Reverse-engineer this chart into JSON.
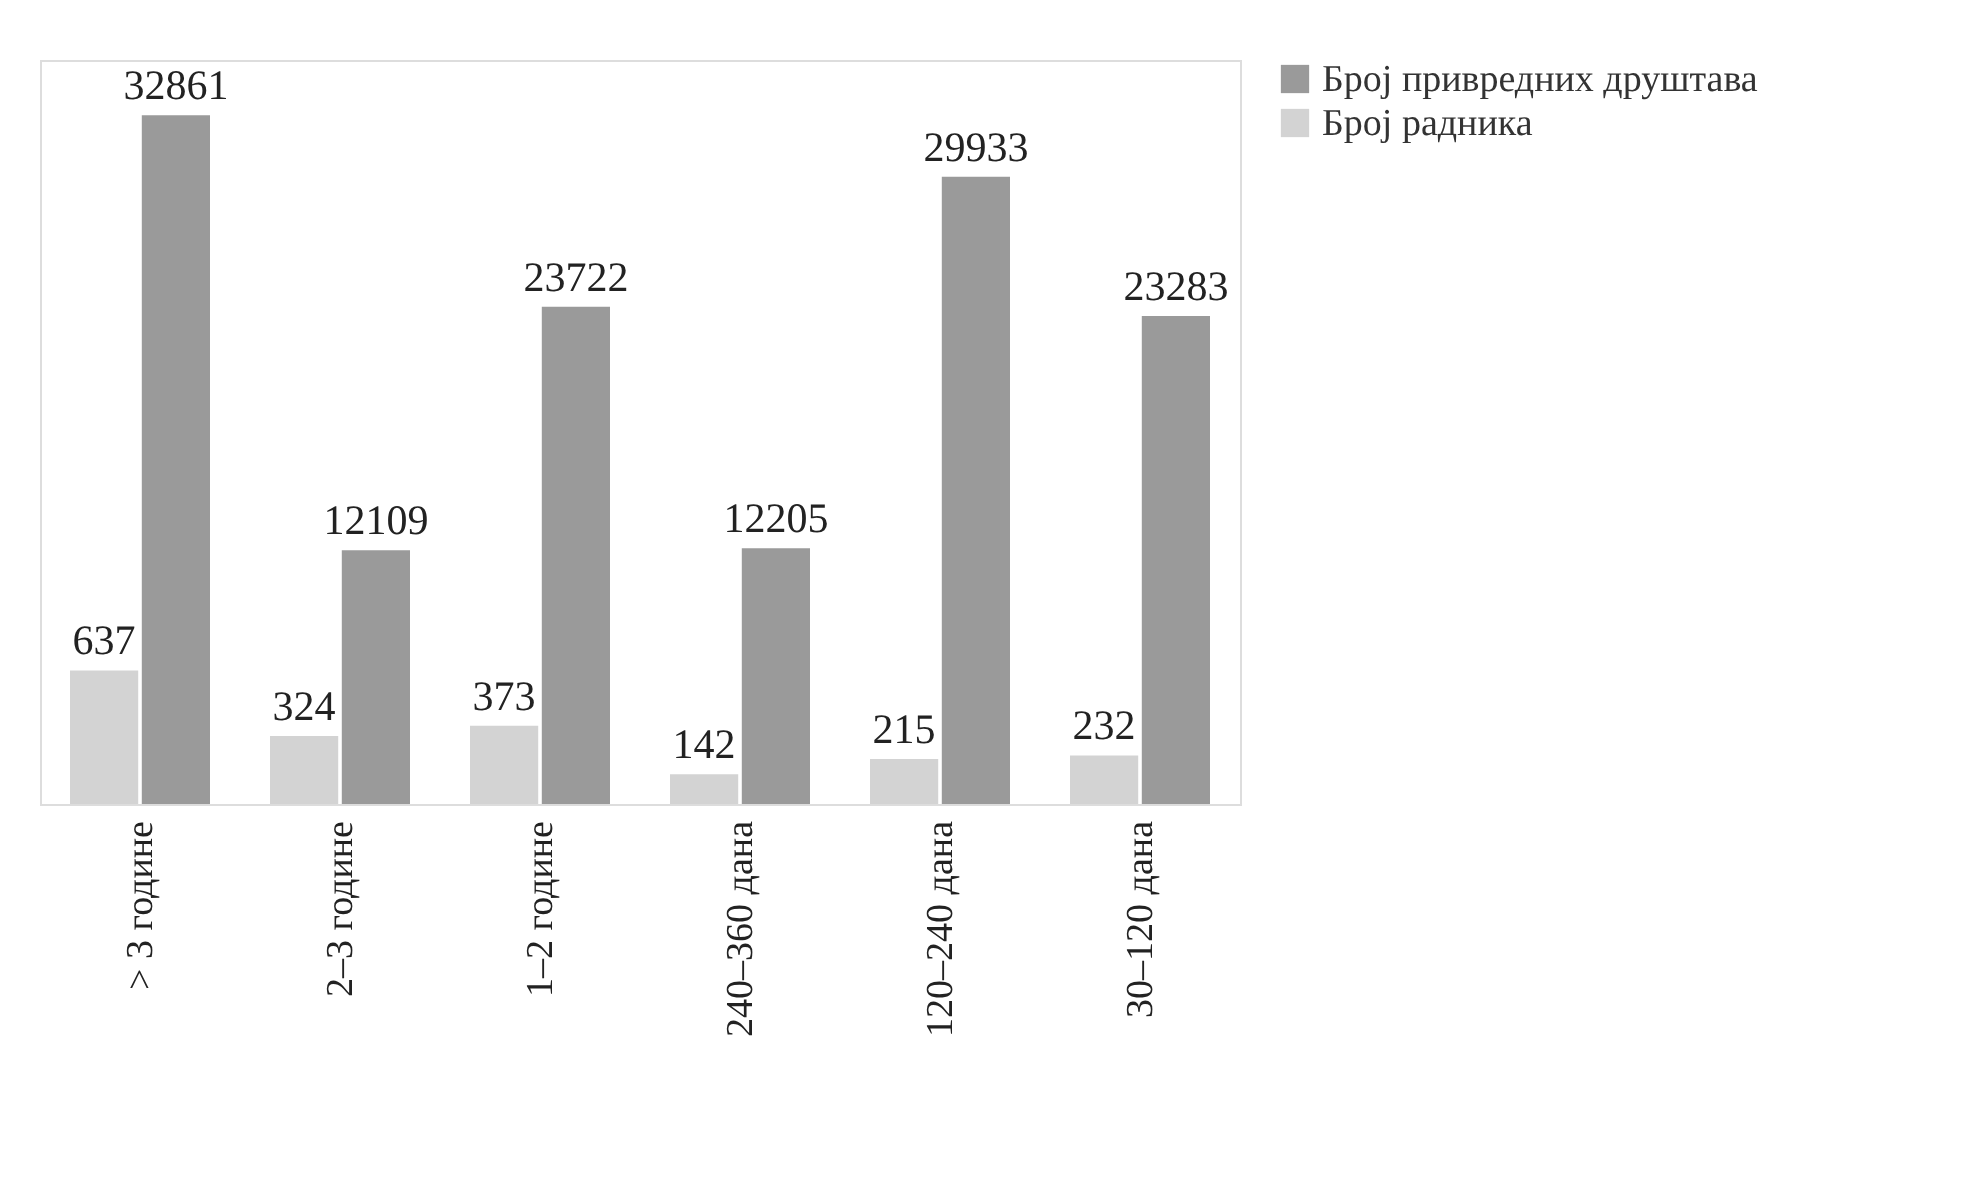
{
  "chart_data": {
    "type": "bar",
    "categories": [
      "> 3 године",
      "2–3 године",
      "1–2 године",
      "240–360 дана",
      "120–240 дана",
      "30–120 дана"
    ],
    "series": [
      {
        "name": "Број радника",
        "color": "#d3d3d3",
        "values": [
          637,
          324,
          373,
          142,
          215,
          232
        ],
        "axis": "y2"
      },
      {
        "name": "Број привредних друштава",
        "color": "#9a9a9a",
        "values": [
          32861,
          12109,
          23722,
          12205,
          29933,
          23283
        ]
      }
    ],
    "ylim": [
      0,
      35500
    ],
    "y2lim": [
      0,
      3550
    ],
    "data_labels": true,
    "legend": "right",
    "grid": false,
    "tick_labels": "x"
  }
}
